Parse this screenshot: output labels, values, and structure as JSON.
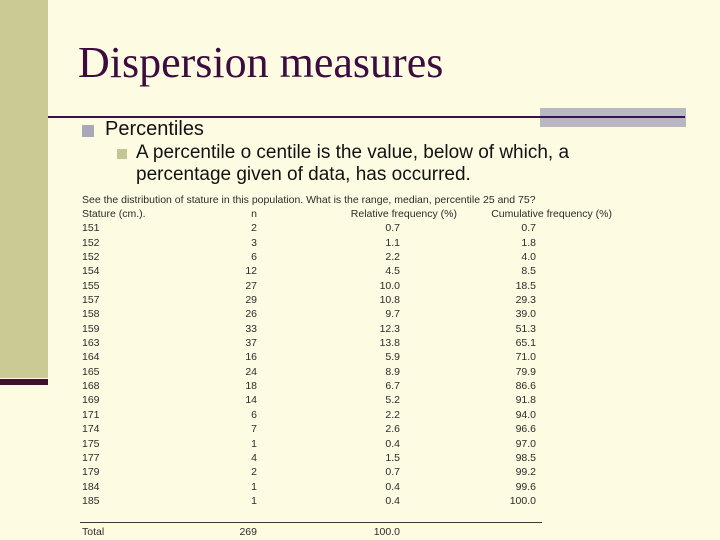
{
  "slide": {
    "title": "Dispersion measures",
    "bullet_1": "Percentiles",
    "bullet_2": "A percentile o centile is the value, below of which, a percentage given of data, has occurred.",
    "question": "See the distribution of stature in this population. What is the range, median, percentile 25 and 75?"
  },
  "table": {
    "columns": [
      "Stature (cm.).",
      "n",
      "Relative frequency (%)",
      "Cumulative frequency (%)"
    ],
    "rows": [
      [
        "151",
        "2",
        "0.7",
        "0.7"
      ],
      [
        "152",
        "3",
        "1.1",
        "1.8"
      ],
      [
        "152",
        "6",
        "2.2",
        "4.0"
      ],
      [
        "154",
        "12",
        "4.5",
        "8.5"
      ],
      [
        "155",
        "27",
        "10.0",
        "18.5"
      ],
      [
        "157",
        "29",
        "10.8",
        "29.3"
      ],
      [
        "158",
        "26",
        "9.7",
        "39.0"
      ],
      [
        "159",
        "33",
        "12.3",
        "51.3"
      ],
      [
        "163",
        "37",
        "13.8",
        "65.1"
      ],
      [
        "164",
        "16",
        "5.9",
        "71.0"
      ],
      [
        "165",
        "24",
        "8.9",
        "79.9"
      ],
      [
        "168",
        "18",
        "6.7",
        "86.6"
      ],
      [
        "169",
        "14",
        "5.2",
        "91.8"
      ],
      [
        "171",
        "6",
        "2.2",
        "94.0"
      ],
      [
        "174",
        "7",
        "2.6",
        "96.6"
      ],
      [
        "175",
        "1",
        "0.4",
        "97.0"
      ],
      [
        "177",
        "4",
        "1.5",
        "98.5"
      ],
      [
        "179",
        "2",
        "0.7",
        "99.2"
      ],
      [
        "184",
        "1",
        "0.4",
        "99.6"
      ],
      [
        "185",
        "1",
        "0.4",
        "100.0"
      ]
    ],
    "total": [
      "Total",
      "269",
      "100.0",
      ""
    ]
  },
  "colors": {
    "background": "#FDFBE2",
    "band": "#CBC994",
    "cap": "#40102F",
    "title": "#3D0C3F",
    "rule": "#3A1150",
    "accent_bar": "#B9B8C2",
    "bullet1": "#A9A8B8",
    "bullet2": "#C6C493"
  }
}
